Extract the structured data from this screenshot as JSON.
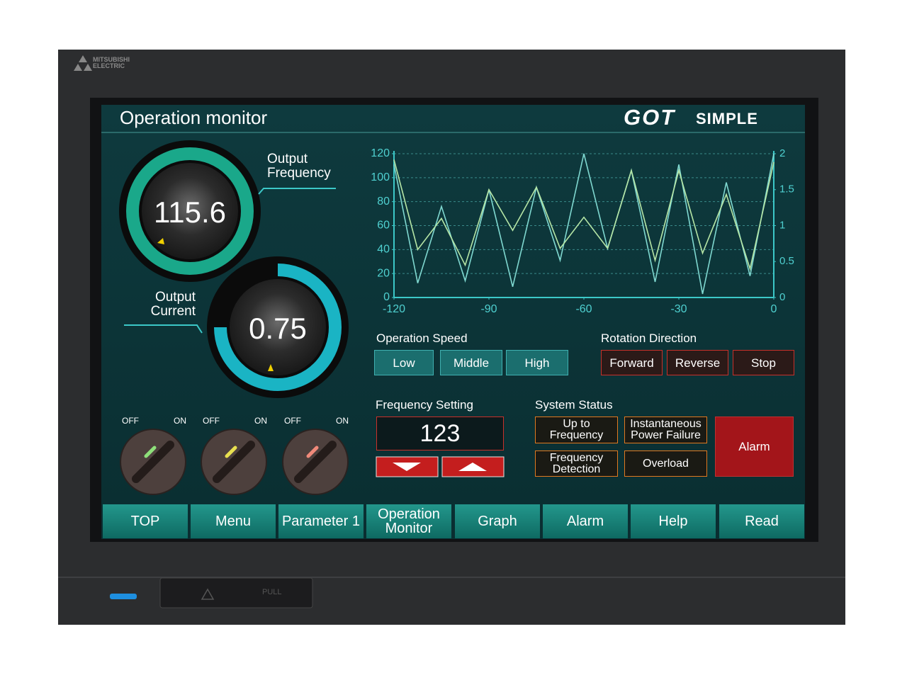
{
  "brand": "MITSUBISHI ELECTRIC",
  "header": {
    "title": "Operation monitor",
    "logo_main": "GOT",
    "logo_sub": "SIMPLE"
  },
  "gauges": [
    {
      "label": "Output Frequency",
      "value": 115.6
    },
    {
      "label": "Output Current",
      "value": 0.75
    }
  ],
  "chart_data": {
    "type": "line",
    "x": [
      -120,
      -112.5,
      -105,
      -97.5,
      -90,
      -82.5,
      -75,
      -67.5,
      -60,
      -52.5,
      -45,
      -37.5,
      -30,
      -22.5,
      -15,
      -7.5,
      0
    ],
    "series": [
      {
        "color": "#7fd8d0",
        "values": [
          111,
          12,
          76,
          14,
          90,
          9,
          92,
          31,
          120,
          41,
          106,
          13,
          111,
          3,
          96,
          18,
          120
        ]
      },
      {
        "color": "#b6e6a6",
        "values": [
          115,
          40,
          66,
          27,
          90,
          56,
          92,
          41,
          67,
          41,
          106,
          31,
          106,
          37,
          86,
          24,
          113
        ]
      }
    ],
    "xlim": [
      -120,
      0
    ],
    "xticks": [
      -120,
      -90,
      -60,
      -30,
      0
    ],
    "ylim": [
      0,
      120
    ],
    "yticks": [
      0,
      20,
      40,
      60,
      80,
      100,
      120
    ],
    "y2lim": [
      0,
      2
    ],
    "y2ticks": [
      0,
      0.5,
      1,
      1.5,
      2
    ],
    "grid": true
  },
  "operation_speed": {
    "label": "Operation Speed",
    "buttons": [
      "Low",
      "Middle",
      "High"
    ]
  },
  "rotation_direction": {
    "label": "Rotation Direction",
    "buttons": [
      "Forward",
      "Reverse",
      "Stop"
    ]
  },
  "switches": [
    {
      "off": "OFF",
      "on": "ON"
    },
    {
      "off": "OFF",
      "on": "ON"
    },
    {
      "off": "OFF",
      "on": "ON"
    }
  ],
  "frequency_setting": {
    "label": "Frequency Setting",
    "value": 123
  },
  "system_status": {
    "label": "System Status",
    "indicators": [
      "Up to Frequency",
      "Instantaneous Power Failure",
      "Frequency Detection",
      "Overload"
    ],
    "alarm": "Alarm"
  },
  "nav": [
    "TOP",
    "Menu",
    "Parameter 1",
    "Operation Monitor",
    "Graph",
    "Alarm",
    "Help",
    "Read"
  ],
  "port_label": "PULL"
}
